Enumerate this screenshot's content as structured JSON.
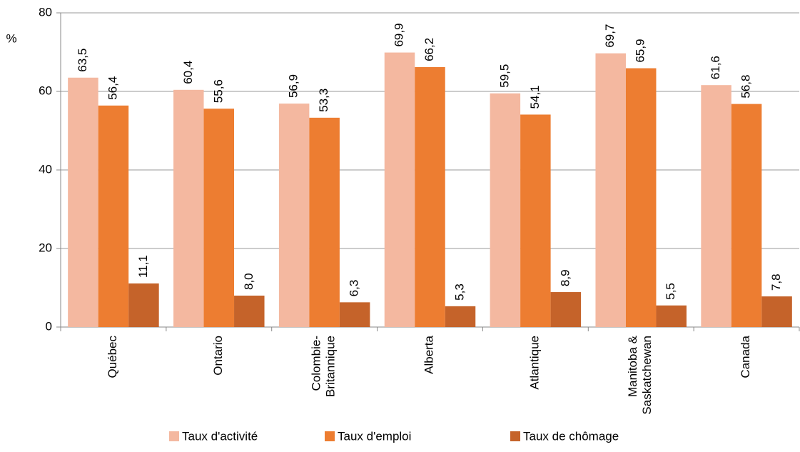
{
  "chart_data": {
    "type": "bar",
    "y_axis_label": "%",
    "categories": [
      "Québec",
      "Ontario",
      "Colombie-\nBritannique",
      "Alberta",
      "Atlantique",
      "Manitoba &\nSaskatchewan",
      "Canada"
    ],
    "series": [
      {
        "name": "Taux d'activité",
        "color": "#f4b8a0",
        "values": [
          63.5,
          60.4,
          56.9,
          69.9,
          59.5,
          69.7,
          61.6
        ],
        "value_labels": [
          "63,5",
          "60,4",
          "56,9",
          "69,9",
          "59,5",
          "69,7",
          "61,6"
        ]
      },
      {
        "name": "Taux d'emploi",
        "color": "#ed7d31",
        "values": [
          56.4,
          55.6,
          53.3,
          66.2,
          54.1,
          65.9,
          56.8
        ],
        "value_labels": [
          "56,4",
          "55,6",
          "53,3",
          "66,2",
          "54,1",
          "65,9",
          "56,8"
        ]
      },
      {
        "name": "Taux de chômage",
        "color": "#c5632a",
        "values": [
          11.1,
          8.0,
          6.3,
          5.3,
          8.9,
          5.5,
          7.8
        ],
        "value_labels": [
          "11,1",
          "8,0",
          "6,3",
          "5,3",
          "8,9",
          "5,5",
          "7,8"
        ]
      }
    ],
    "ylim": [
      0,
      80
    ],
    "yticks": [
      0,
      20,
      40,
      60,
      80
    ],
    "grid": true,
    "legend": "bottom"
  }
}
